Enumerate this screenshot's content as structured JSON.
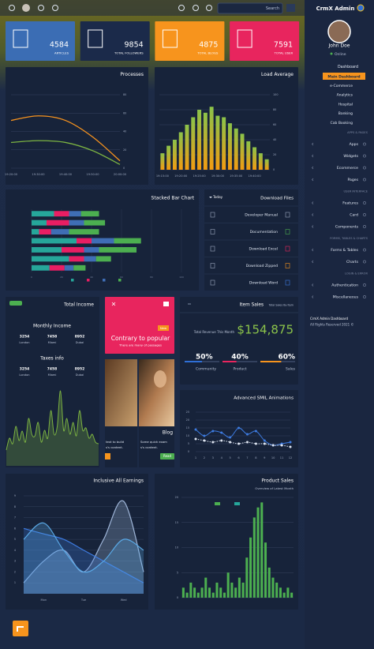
{
  "topbar": {
    "search": "Search"
  },
  "sidebar": {
    "brand": "CrmX Admin",
    "user": "John Doe",
    "status": "Online",
    "dashboard": "Dashboard",
    "active": "Main Dashboard",
    "dashboard_items": [
      "e-Commerce",
      "Analytics",
      "Hospital",
      "Banking",
      "Cab Booking"
    ],
    "sections": [
      {
        "heading": "APPS & PAGES",
        "items": [
          "Apps",
          "Widgets",
          "Ecommerce",
          "Pages"
        ]
      },
      {
        "heading": "USER INTERFACE",
        "items": [
          "Features",
          "Card",
          "Components"
        ]
      },
      {
        "heading": "FORMS, TABLES & CHARTS",
        "items": [
          "Forms & Tables",
          "Charts"
        ]
      },
      {
        "heading": "LOGIN & ERROR",
        "items": [
          "Authentication",
          "Miscellaneous"
        ]
      }
    ],
    "footer": [
      "CrmX Admin Dashboard",
      "All Rights Reserved 2021 ©"
    ]
  },
  "stats": [
    {
      "value": "4584",
      "label": "ARTICLES",
      "color": "#3b6db4"
    },
    {
      "value": "9854",
      "label": "TOTAL FOLLOWERS",
      "color": "#1b2a4a"
    },
    {
      "value": "4875",
      "label": "TOTAL BLOGS",
      "color": "#f7941d"
    },
    {
      "value": "7591",
      "label": "TOTAL USER",
      "color": "#e8255e"
    }
  ],
  "download": {
    "title": "Download Files",
    "filter": "Today",
    "items": [
      "Developer Manual",
      "Documentation",
      "Download Excel",
      "Download Zipped",
      "Download Word"
    ]
  },
  "income": {
    "title": "Total Income",
    "monthly": {
      "heading": "Monthly Income",
      "items": [
        {
          "value": "3254",
          "city": "London"
        },
        {
          "value": "7458",
          "city": "Miami"
        },
        {
          "value": "8952",
          "city": "Dubai"
        }
      ]
    },
    "taxes": {
      "heading": "Taxes info",
      "items": [
        {
          "value": "3254",
          "city": "London"
        },
        {
          "value": "7458",
          "city": "Miami"
        },
        {
          "value": "8952",
          "city": "Dubai"
        }
      ]
    }
  },
  "promo": {
    "badge": "New",
    "title": "Contrary to popular",
    "text": "There are many of passages"
  },
  "blog": {
    "left": [
      "text to build",
      "s's content."
    ],
    "title": "Blog",
    "text": [
      "Some quick exam",
      "s's content."
    ],
    "button": "Read"
  },
  "item_sales": {
    "title": "Item Sales",
    "subtitle": "Total Sales By Item",
    "caption": "Total Revenue This Month",
    "revenue": "$154,875",
    "progress": [
      {
        "value": 50,
        "label": "50%",
        "name": "Community",
        "color": "#2f6fd6"
      },
      {
        "value": 40,
        "label": "40%",
        "name": "Product",
        "color": "#e8255e"
      },
      {
        "value": 60,
        "label": "60%",
        "name": "Sales",
        "color": "#f7941d"
      }
    ]
  },
  "chart_data": [
    {
      "type": "line",
      "title": "Processes",
      "categories": [
        "19:20:00",
        "19:30:00",
        "19:40:00",
        "19:50:00",
        "20:00:00"
      ],
      "series": [
        {
          "color": "#f7931e",
          "values": [
            52,
            57,
            52,
            34,
            8
          ]
        },
        {
          "color": "#7cb342",
          "values": [
            28,
            30,
            28,
            19,
            4
          ]
        }
      ],
      "ylim": [
        0,
        80
      ],
      "yticks": [
        0,
        20,
        40,
        60,
        80
      ],
      "grid": true
    },
    {
      "type": "bar",
      "title": "Load Average",
      "categories": [
        "19:15:00",
        null,
        null,
        "19:20:00",
        null,
        null,
        "19:25:00",
        null,
        null,
        "19:30:00",
        null,
        null,
        "19:35:00",
        null,
        null,
        "19:40:00",
        null,
        null
      ],
      "values": [
        22,
        32,
        40,
        50,
        60,
        70,
        80,
        76,
        84,
        72,
        70,
        62,
        55,
        48,
        38,
        30,
        22,
        14
      ],
      "gradient": [
        "#8bc34a",
        "#f39c12"
      ],
      "ylim": [
        0,
        100
      ],
      "yticks": [
        0,
        20,
        40,
        60,
        80,
        100
      ],
      "grid": true
    },
    {
      "type": "hbar",
      "title": "Stacked Bar Chart",
      "categories": [
        null,
        null,
        null,
        null,
        null,
        null,
        null
      ],
      "series": [
        {
          "color": "#26a69a",
          "values": [
            15,
            10,
            5,
            30,
            20,
            25,
            12
          ]
        },
        {
          "color": "#e91e63",
          "values": [
            10,
            15,
            8,
            10,
            15,
            10,
            10
          ]
        },
        {
          "color": "#3f6eb5",
          "values": [
            8,
            10,
            12,
            15,
            10,
            8,
            6
          ]
        },
        {
          "color": "#4caf50",
          "values": [
            12,
            14,
            20,
            18,
            25,
            10,
            8
          ]
        }
      ],
      "xlim": [
        0,
        100
      ],
      "xticks": [
        0,
        20,
        40,
        60,
        80,
        100
      ],
      "grid": true
    },
    {
      "type": "area",
      "categories": [
        null,
        null,
        null,
        null,
        null,
        null,
        null,
        null,
        null,
        null,
        null,
        null,
        null,
        null,
        null,
        null,
        null,
        null,
        null,
        null,
        null,
        null,
        null,
        null,
        null,
        null,
        null,
        null,
        null,
        null
      ],
      "series": [
        {
          "color": "#7cb342",
          "values": [
            20,
            35,
            28,
            50,
            32,
            44,
            30,
            60,
            40,
            38,
            55,
            30,
            45,
            35,
            70,
            40,
            50,
            95,
            45,
            60,
            40,
            55,
            38,
            70,
            45,
            48,
            35,
            40,
            30,
            28
          ]
        }
      ],
      "ylim": [
        0,
        100
      ]
    },
    {
      "type": "line",
      "title": "Advanced SMIL Animations",
      "categories": [
        "1",
        "2",
        "3",
        "4",
        "5",
        "6",
        "7",
        "8",
        "9",
        "10",
        "11",
        "12"
      ],
      "series": [
        {
          "color": "#3d7be0",
          "values": [
            14,
            10,
            13,
            12,
            9,
            15,
            11,
            13,
            7,
            4,
            5,
            6
          ]
        },
        {
          "color": "#dfe6f2",
          "values": [
            8,
            7,
            6,
            7,
            6,
            5,
            6,
            5,
            5,
            4,
            4,
            3
          ]
        }
      ],
      "ylim": [
        0,
        25
      ],
      "yticks": [
        0,
        5,
        10,
        15,
        20,
        25
      ],
      "grid": true,
      "markers": true
    },
    {
      "type": "area",
      "title": "Inclusive All Earnings",
      "categories": [
        null,
        "Mon",
        null,
        "Tue",
        null,
        "Wed",
        null
      ],
      "series": [
        {
          "color": "#9fb6d9",
          "values": [
            1,
            3,
            4,
            2,
            5,
            8.5,
            2
          ]
        },
        {
          "color": "#3d7be0",
          "values": [
            6,
            5.5,
            5,
            4,
            3,
            2,
            1
          ]
        },
        {
          "color": "#5aa9e6",
          "values": [
            5,
            6.5,
            4,
            2,
            3,
            5,
            4
          ]
        }
      ],
      "ylim": [
        0,
        9
      ],
      "yticks": [
        1,
        2,
        3,
        4,
        5,
        6,
        7,
        8,
        9
      ],
      "grid": true
    },
    {
      "type": "bar",
      "title": "Product Sales",
      "subtitle": "Overview of Latest Month",
      "categories": [
        null,
        null,
        null,
        null,
        null,
        null,
        null,
        null,
        null,
        null,
        null,
        null,
        null,
        null,
        null,
        null,
        null,
        null,
        null,
        null,
        null,
        null,
        null,
        null,
        null,
        null,
        null,
        null,
        null,
        null
      ],
      "values": [
        2,
        1,
        3,
        2,
        1,
        2,
        4,
        2,
        1,
        3,
        2,
        1,
        5,
        3,
        2,
        4,
        3,
        8,
        12,
        16,
        18,
        19,
        11,
        6,
        4,
        3,
        2,
        1,
        2,
        1
      ],
      "color": "#4caf50",
      "ylim": [
        0,
        20
      ],
      "yticks": [
        0,
        5,
        10,
        15,
        20
      ],
      "grid": true
    }
  ]
}
